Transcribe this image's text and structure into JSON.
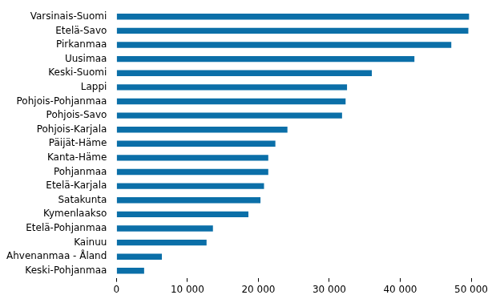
{
  "chart_data": {
    "type": "bar",
    "orientation": "horizontal",
    "categories": [
      "Varsinais-Suomi",
      "Etelä-Savo",
      "Pirkanmaa",
      "Uusimaa",
      "Keski-Suomi",
      "Lappi",
      "Pohjois-Pohjanmaa",
      "Pohjois-Savo",
      "Pohjois-Karjala",
      "Päijät-Häme",
      "Kanta-Häme",
      "Pohjanmaa",
      "Etelä-Karjala",
      "Satakunta",
      "Kymenlaakso",
      "Etelä-Pohjanmaa",
      "Kainuu",
      "Ahvenanmaa - Åland",
      "Keski-Pohjanmaa"
    ],
    "values": [
      49700,
      49600,
      47200,
      42000,
      36000,
      32500,
      32300,
      31800,
      24100,
      22400,
      21400,
      21400,
      20800,
      20300,
      18600,
      13600,
      12700,
      6400,
      3900
    ],
    "color": "#0b6fa8",
    "xlim": [
      0,
      50000
    ],
    "xticks": [
      0,
      {
        "value": 10000,
        "label": "10 000"
      },
      {
        "value": 20000,
        "label": "20 000"
      },
      {
        "value": 30000,
        "label": "30 000"
      },
      {
        "value": 40000,
        "label": "40 000"
      },
      {
        "value": 50000,
        "label": "50 000"
      }
    ],
    "grid": false
  }
}
